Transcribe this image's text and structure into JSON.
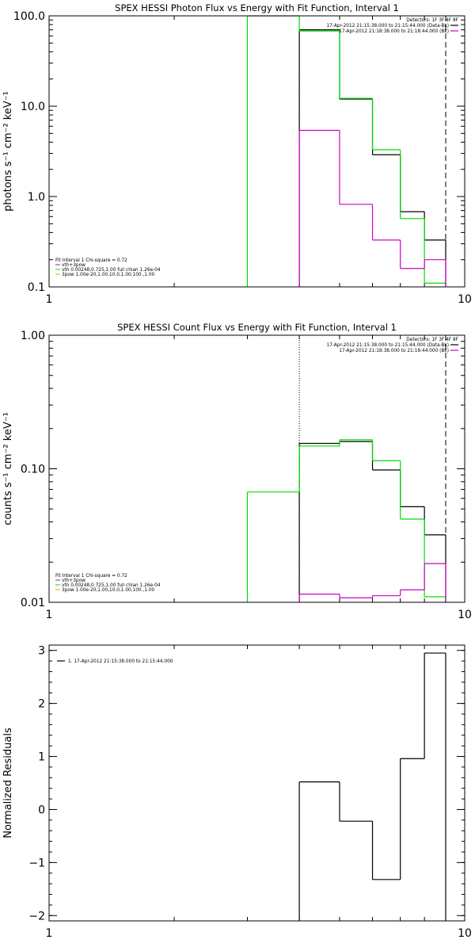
{
  "colors": {
    "data": "#000000",
    "background": "#cc00cc",
    "model": "#00dd00",
    "component": "#e8a000"
  },
  "chart_data": [
    {
      "type": "line",
      "title": "SPEX HESSI Photon Flux vs Energy with Fit Function, Interval 1",
      "ylabel": "photons s⁻¹ cm⁻² keV⁻¹",
      "xlabel": "",
      "xscale": "log",
      "yscale": "log",
      "xlim": [
        1,
        10
      ],
      "ylim": [
        0.1,
        100
      ],
      "xticks": [
        {
          "v": 1,
          "label": "1"
        },
        {
          "v": 10,
          "label": "10"
        }
      ],
      "yticks": [
        {
          "v": 0.1,
          "label": "0.1"
        },
        {
          "v": 1,
          "label": "1.0"
        },
        {
          "v": 10,
          "label": "10.0"
        },
        {
          "v": 100,
          "label": "100.0"
        }
      ],
      "vlines": [
        {
          "x": 4.0,
          "style": "dotted",
          "color": "#000000"
        },
        {
          "x": 9.0,
          "style": "dashed",
          "color": "#000000"
        }
      ],
      "legend_top": [
        {
          "text": "Detectors: 1F 3F 4F 8F",
          "color": "",
          "key": false
        },
        {
          "text": "17-Apr-2012 21:15:38.000 to 21:15:44.000 (Data-Bk)",
          "color": "#000000",
          "key": true
        },
        {
          "text": "17-Apr-2012 21:18:38.000 to 21:18:44.000 (Bk)",
          "color": "#cc00cc",
          "key": true
        }
      ],
      "legend_bottom": [
        {
          "text": "Fit Interval 1    Chi-square = 0.72",
          "color": ""
        },
        {
          "text": "vth+3pow",
          "color": "#cc00cc"
        },
        {
          "text": "vth 0.00248,0.725,1.00   full chian 1.26e-04",
          "color": "#00dd00"
        },
        {
          "text": "3pow 1.00e-20,1.00,10.0,1.00,100.,1.00",
          "color": "#e8a000"
        }
      ],
      "series": [
        {
          "color": "#000000",
          "edges": [
            4.0,
            5.0,
            6.0,
            7.0,
            8.0,
            9.0
          ],
          "values": [
            70,
            12,
            2.9,
            0.68,
            0.33
          ]
        },
        {
          "color": "#00dd00",
          "edges": [
            3.0,
            4.0,
            5.0,
            6.0,
            7.0,
            8.0,
            9.0
          ],
          "values": [
            100,
            68,
            12.2,
            3.3,
            0.57,
            0.11
          ]
        },
        {
          "color": "#cc00cc",
          "edges": [
            4.0,
            5.0,
            6.0,
            7.0,
            8.0,
            9.0
          ],
          "values": [
            5.4,
            0.82,
            0.33,
            0.16,
            0.2
          ]
        }
      ]
    },
    {
      "type": "line",
      "title": "SPEX HESSI Count Flux vs Energy with Fit Function, Interval 1",
      "ylabel": "counts s⁻¹ cm⁻² keV⁻¹",
      "xlabel": "",
      "xscale": "log",
      "yscale": "log",
      "xlim": [
        1,
        10
      ],
      "ylim": [
        0.01,
        1
      ],
      "xticks": [
        {
          "v": 1,
          "label": "1"
        },
        {
          "v": 10,
          "label": "10"
        }
      ],
      "yticks": [
        {
          "v": 0.01,
          "label": "0.01"
        },
        {
          "v": 0.1,
          "label": "0.10"
        },
        {
          "v": 1,
          "label": "1.00"
        }
      ],
      "vlines": [
        {
          "x": 4.0,
          "style": "dotted",
          "color": "#000000"
        },
        {
          "x": 9.0,
          "style": "dashed",
          "color": "#000000"
        }
      ],
      "legend_top": [
        {
          "text": "Detectors: 1F 3F 4F 8F",
          "color": "",
          "key": false
        },
        {
          "text": "17-Apr-2012 21:15:38.000 to 21:15:44.000 (Data-Bk)",
          "color": "#000000",
          "key": true
        },
        {
          "text": "17-Apr-2012 21:18:38.000 to 21:18:44.000 (Bk)",
          "color": "#cc00cc",
          "key": true
        }
      ],
      "legend_bottom": [
        {
          "text": "Fit Interval 1    Chi-square = 0.72",
          "color": ""
        },
        {
          "text": "vth+3pow",
          "color": "#cc00cc"
        },
        {
          "text": "vth 0.00248,0.725,1.00   full chian 1.26e-04",
          "color": "#00dd00"
        },
        {
          "text": "3pow 1.00e-20,1.00,10.0,1.00,100.,1.00",
          "color": "#e8a000"
        }
      ],
      "series": [
        {
          "color": "#000000",
          "edges": [
            4.0,
            5.0,
            6.0,
            7.0,
            8.0,
            9.0
          ],
          "values": [
            0.155,
            0.16,
            0.098,
            0.052,
            0.032
          ]
        },
        {
          "color": "#00dd00",
          "edges": [
            3.0,
            4.0,
            5.0,
            6.0,
            7.0,
            8.0,
            9.0
          ],
          "values": [
            0.067,
            0.148,
            0.165,
            0.115,
            0.042,
            0.011
          ]
        },
        {
          "color": "#cc00cc",
          "edges": [
            4.0,
            5.0,
            6.0,
            7.0,
            8.0,
            9.0
          ],
          "values": [
            0.0115,
            0.0108,
            0.0112,
            0.0124,
            0.0195
          ]
        }
      ]
    },
    {
      "type": "line",
      "title": "",
      "ylabel": "Normalized Residuals",
      "xlabel": "",
      "xscale": "log",
      "yscale": "linear",
      "xlim": [
        1,
        10
      ],
      "ylim": [
        -2.1,
        3.1
      ],
      "xticks": [
        {
          "v": 1,
          "label": "1"
        },
        {
          "v": 10,
          "label": "10"
        }
      ],
      "yticks": [
        {
          "v": -2,
          "label": "−2"
        },
        {
          "v": -1,
          "label": "−1"
        },
        {
          "v": 0,
          "label": "0"
        },
        {
          "v": 1,
          "label": "1"
        },
        {
          "v": 2,
          "label": "2"
        },
        {
          "v": 3,
          "label": "3"
        }
      ],
      "vlines": [],
      "legend_top": [],
      "legend_left": [
        {
          "text": "1. 17-Apr-2012 21:15:38.000 to 21:15:44.000",
          "color": "#000000"
        }
      ],
      "legend_bottom": [],
      "series": [
        {
          "color": "#000000",
          "edges": [
            4.0,
            5.0,
            6.0,
            7.0,
            8.0,
            9.0
          ],
          "values": [
            0.52,
            -0.22,
            -1.32,
            0.96,
            2.95
          ]
        }
      ]
    }
  ]
}
